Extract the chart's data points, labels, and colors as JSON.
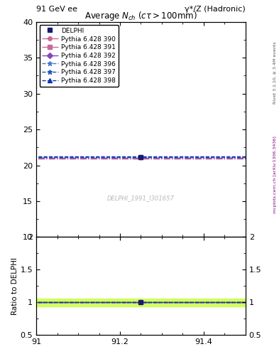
{
  "title_top_left": "91 GeV ee",
  "title_top_right": "γ*/Z (Hadronic)",
  "main_title": "Average $N_{ch}$ ($c\\tau > 100$mm)",
  "watermark": "DELPHI_1991_I301657",
  "right_label_top": "Rivet 3.1.10, ≥ 3.4M events",
  "right_label_mid": "mcplots.cern.ch [arXiv:1306.3436]",
  "ylabel_ratio": "Ratio to DELPHI",
  "xlim": [
    91.0,
    91.5
  ],
  "ylim_main": [
    10.0,
    40.0
  ],
  "ylim_ratio": [
    0.5,
    2.0
  ],
  "xticks": [
    91.0,
    91.2,
    91.4
  ],
  "xtick_labels": [
    "91",
    "91.2",
    "91.4"
  ],
  "yticks_main": [
    10,
    15,
    20,
    25,
    30,
    35,
    40
  ],
  "yticks_ratio": [
    0.5,
    1.0,
    1.5,
    2.0
  ],
  "ytick_ratio_labels": [
    "0.5",
    "1",
    "1.5",
    "2"
  ],
  "data_x": 91.25,
  "data_y": 21.1,
  "data_yerr": 0.25,
  "data_color": "#1a1a6e",
  "data_label": "DELPHI",
  "lines": [
    {
      "y": 20.9,
      "color": "#cc6699",
      "linestyle": "-.",
      "marker": "o",
      "markersize": 4,
      "label": "Pythia 6.428 390"
    },
    {
      "y": 20.9,
      "color": "#cc6699",
      "linestyle": "-.",
      "marker": "s",
      "markersize": 4,
      "label": "Pythia 6.428 391"
    },
    {
      "y": 21.05,
      "color": "#8844bb",
      "linestyle": "-.",
      "marker": "D",
      "markersize": 4,
      "label": "Pythia 6.428 392"
    },
    {
      "y": 21.15,
      "color": "#4477cc",
      "linestyle": "--",
      "marker": "*",
      "markersize": 5,
      "label": "Pythia 6.428 396"
    },
    {
      "y": 21.15,
      "color": "#2255bb",
      "linestyle": "--",
      "marker": "*",
      "markersize": 5,
      "label": "Pythia 6.428 397"
    },
    {
      "y": 21.2,
      "color": "#1133aa",
      "linestyle": "--",
      "marker": "^",
      "markersize": 4,
      "label": "Pythia 6.428 398"
    }
  ],
  "ratio_band_color": "#ccff44",
  "ratio_band_lo": 0.94,
  "ratio_band_hi": 1.06,
  "ratio_line_color": "#008800",
  "ratio_data_x": 91.25,
  "ratio_data_y": 1.0
}
